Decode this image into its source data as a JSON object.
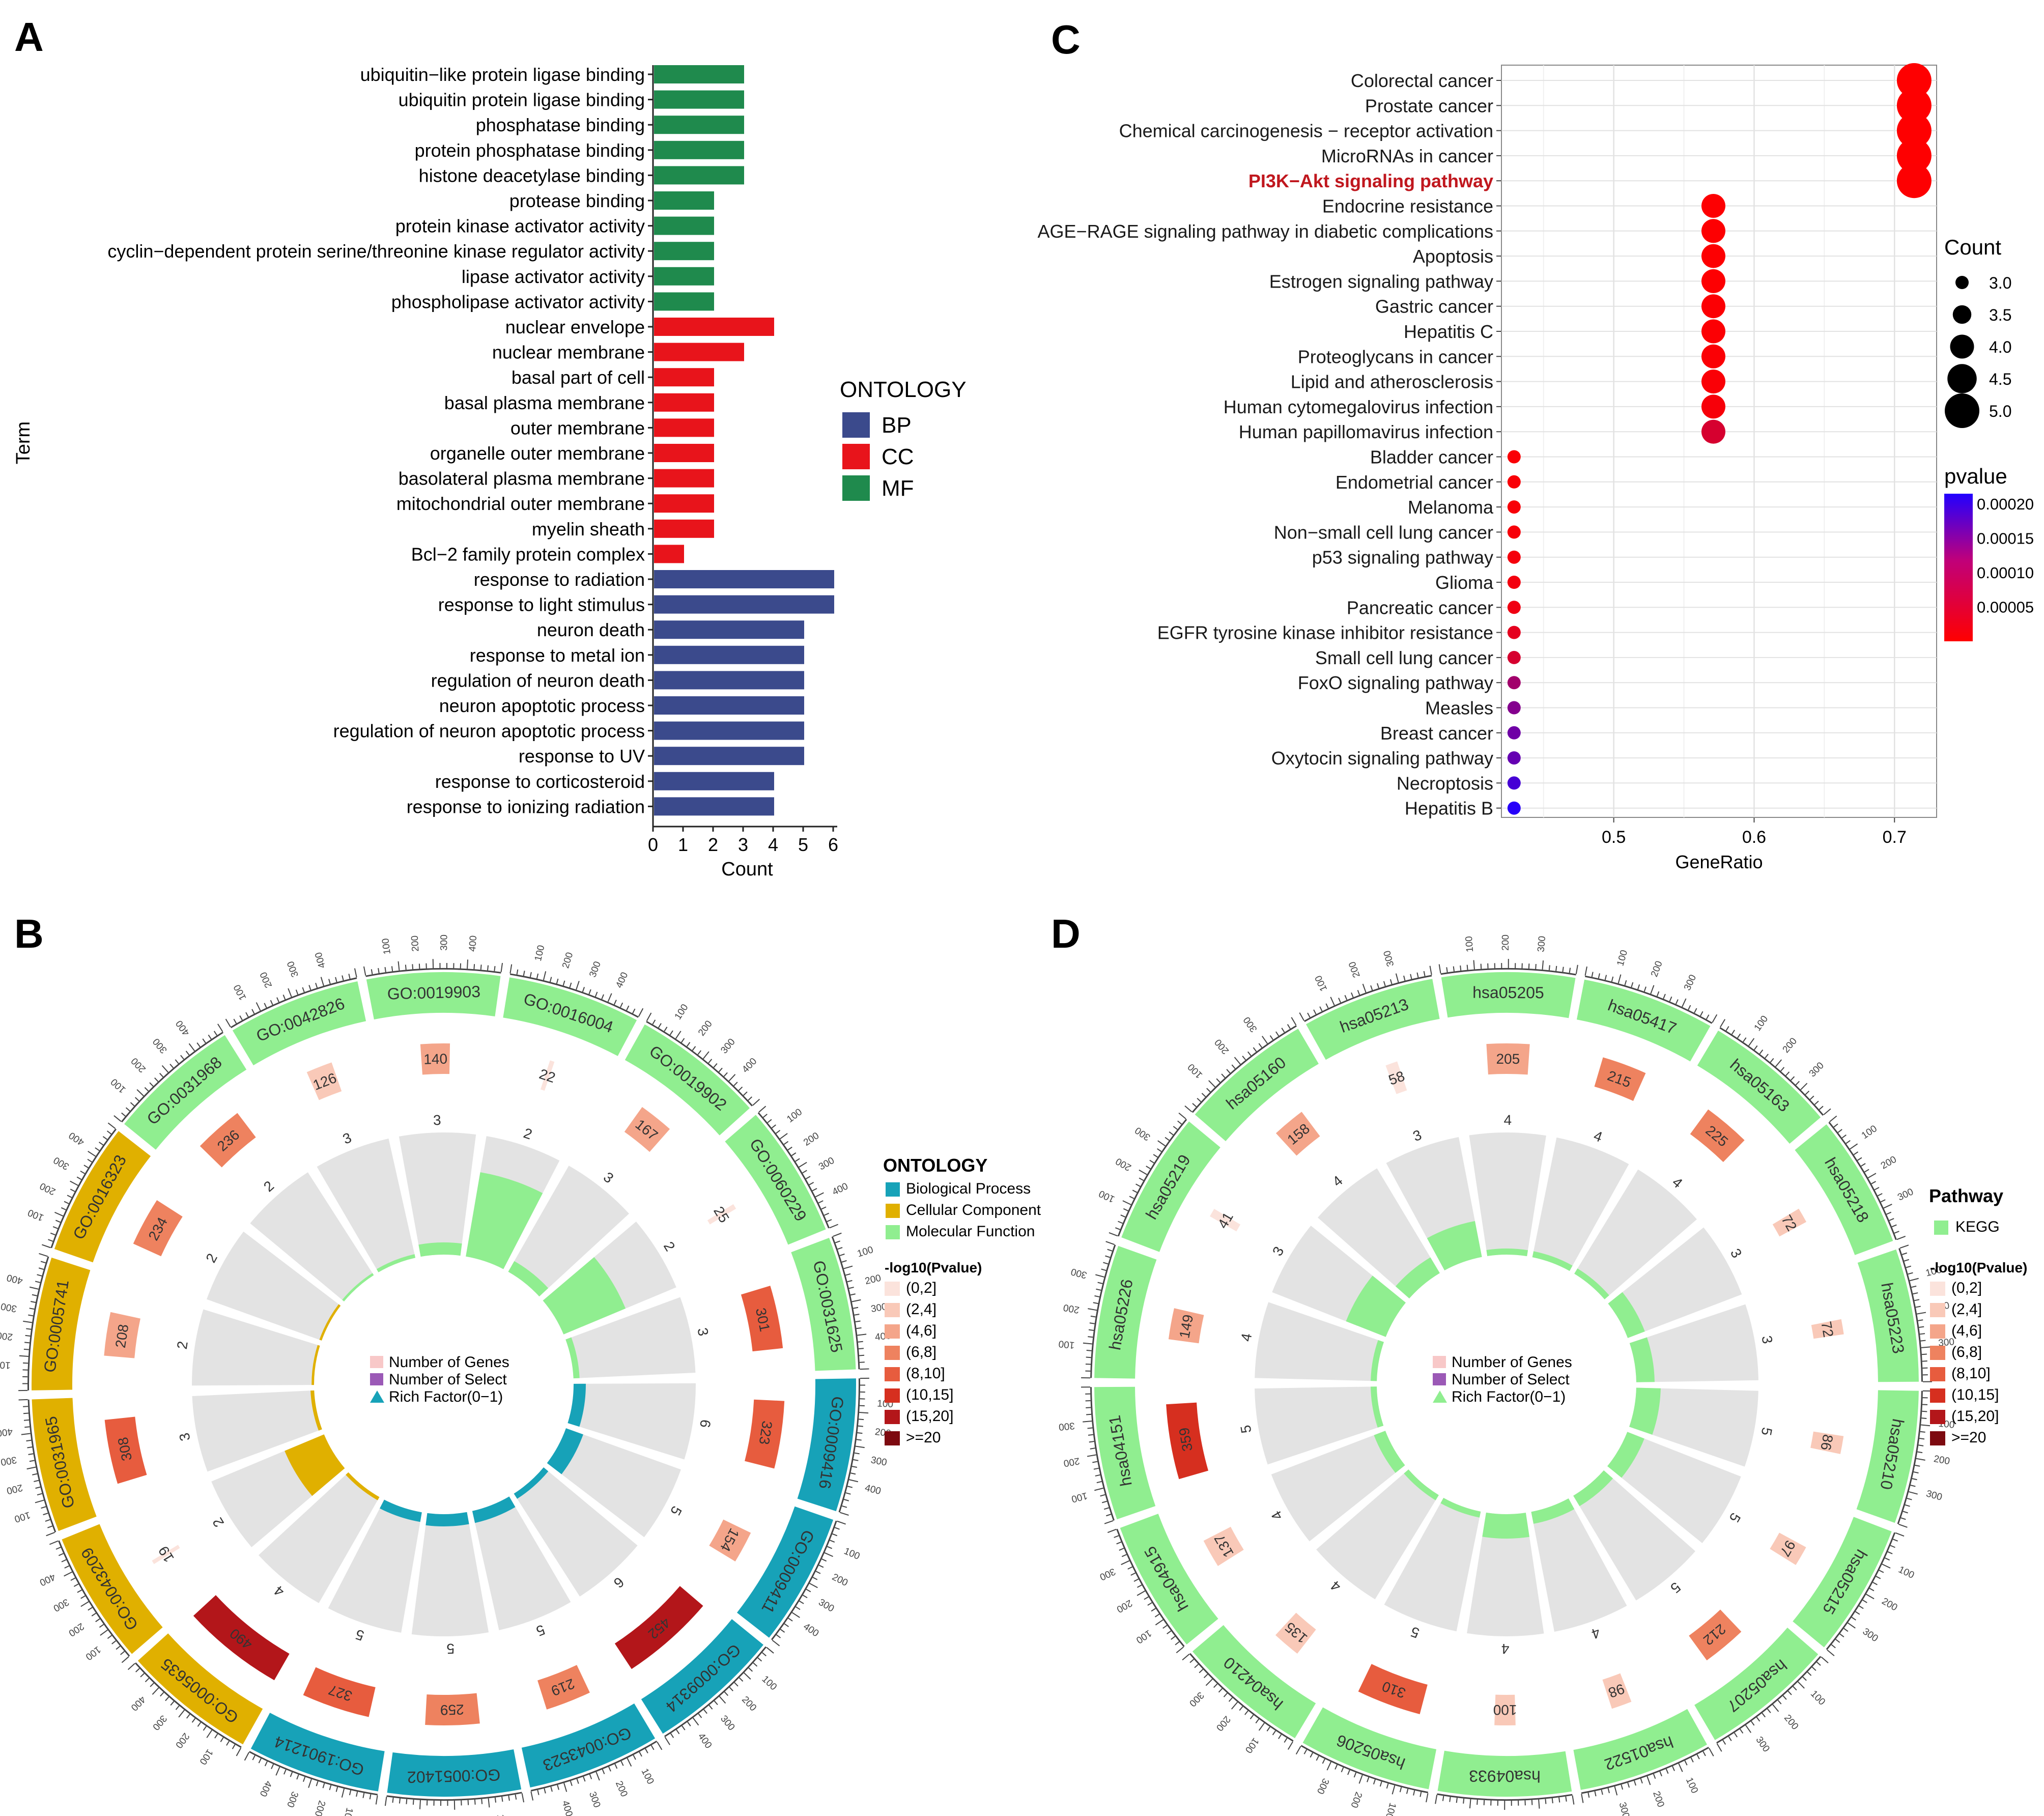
{
  "panels": [
    {
      "label": "A"
    },
    {
      "label": "C"
    },
    {
      "label": "B"
    },
    {
      "label": "D"
    }
  ],
  "chart_data": [
    {
      "type": "bar",
      "panel": "A",
      "orientation": "horizontal",
      "xlabel": "Count",
      "ylabel": "Term",
      "xlim": [
        0,
        6
      ],
      "xticks": [
        "0",
        "1",
        "2",
        "3",
        "4",
        "5",
        "6"
      ],
      "legend": {
        "title": "ONTOLOGY",
        "placement": "right",
        "items": [
          {
            "name": "BP",
            "color": "#3b4a8c"
          },
          {
            "name": "CC",
            "color": "#e8141b"
          },
          {
            "name": "MF",
            "color": "#1f8a4d"
          }
        ]
      },
      "categories": [
        "ubiquitin−like protein ligase binding",
        "ubiquitin protein ligase binding",
        "phosphatase binding",
        "protein phosphatase binding",
        "histone deacetylase binding",
        "protease binding",
        "protein kinase activator activity",
        "cyclin−dependent protein serine/threonine kinase regulator activity",
        "lipase activator activity",
        "phospholipase activator activity",
        "nuclear envelope",
        "nuclear membrane",
        "basal part of cell",
        "basal plasma membrane",
        "outer membrane",
        "organelle outer membrane",
        "basolateral plasma membrane",
        "mitochondrial outer membrane",
        "myelin sheath",
        "Bcl−2 family protein complex",
        "response to radiation",
        "response to light stimulus",
        "neuron death",
        "response to metal ion",
        "regulation of neuron death",
        "neuron apoptotic process",
        "regulation of neuron apoptotic process",
        "response to UV",
        "response to corticosteroid",
        "response to ionizing radiation"
      ],
      "values": [
        3,
        3,
        3,
        3,
        3,
        2,
        2,
        2,
        2,
        2,
        4,
        3,
        2,
        2,
        2,
        2,
        2,
        2,
        2,
        1,
        6,
        6,
        5,
        5,
        5,
        5,
        5,
        5,
        4,
        4
      ],
      "groups": [
        "MF",
        "MF",
        "MF",
        "MF",
        "MF",
        "MF",
        "MF",
        "MF",
        "MF",
        "MF",
        "CC",
        "CC",
        "CC",
        "CC",
        "CC",
        "CC",
        "CC",
        "CC",
        "CC",
        "CC",
        "BP",
        "BP",
        "BP",
        "BP",
        "BP",
        "BP",
        "BP",
        "BP",
        "BP",
        "BP"
      ]
    },
    {
      "type": "scatter",
      "panel": "C",
      "xlabel": "GeneRatio",
      "xlim": [
        0.42,
        0.73
      ],
      "xticks": [
        0.5,
        0.6,
        0.7
      ],
      "xtick_labels": [
        "0.5",
        "0.6",
        "0.7"
      ],
      "categories": [
        "Colorectal cancer",
        "Prostate cancer",
        "Chemical carcinogenesis − receptor activation",
        "MicroRNAs in cancer",
        "PI3K−Akt signaling pathway",
        "Endocrine resistance",
        "AGE−RAGE signaling pathway in diabetic complications",
        "Apoptosis",
        "Estrogen signaling pathway",
        "Gastric cancer",
        "Hepatitis C",
        "Proteoglycans in cancer",
        "Lipid and atherosclerosis",
        "Human cytomegalovirus infection",
        "Human papillomavirus infection",
        "Bladder cancer",
        "Endometrial cancer",
        "Melanoma",
        "Non−small cell lung cancer",
        "p53 signaling pathway",
        "Glioma",
        "Pancreatic cancer",
        "EGFR tyrosine kinase inhibitor resistance",
        "Small cell lung cancer",
        "FoxO signaling pathway",
        "Measles",
        "Breast cancer",
        "Oxytocin signaling pathway",
        "Necroptosis",
        "Hepatitis B"
      ],
      "highlight": "PI3K−Akt signaling pathway",
      "highlight_color": "#c0171e",
      "x": [
        0.714,
        0.714,
        0.714,
        0.714,
        0.714,
        0.571,
        0.571,
        0.571,
        0.571,
        0.571,
        0.571,
        0.571,
        0.571,
        0.571,
        0.571,
        0.429,
        0.429,
        0.429,
        0.429,
        0.429,
        0.429,
        0.429,
        0.429,
        0.429,
        0.429,
        0.429,
        0.429,
        0.429,
        0.429,
        0.429
      ],
      "count": [
        5,
        5,
        5,
        5,
        5,
        4,
        4,
        4,
        4,
        4,
        4,
        4,
        4,
        4,
        4,
        3,
        3,
        3,
        3,
        3,
        3,
        3,
        3,
        3,
        3,
        3,
        3,
        3,
        3,
        3
      ],
      "pvalue": [
        1e-06,
        1e-06,
        1e-06,
        1e-06,
        2e-06,
        2e-06,
        2e-06,
        2e-06,
        2e-06,
        3e-06,
        3e-06,
        4e-06,
        5e-06,
        8e-06,
        4e-05,
        5e-06,
        6e-06,
        7e-06,
        8e-06,
        1e-05,
        1.2e-05,
        1.5e-05,
        2.5e-05,
        4e-05,
        9e-05,
        0.00012,
        0.00014,
        0.00015,
        0.00018,
        0.00021
      ],
      "size_legend": {
        "title": "Count",
        "items": [
          "3.0",
          "3.5",
          "4.0",
          "4.5",
          "5.0"
        ],
        "values": [
          3,
          3.5,
          4,
          4.5,
          5
        ]
      },
      "color_legend": {
        "title": "pvalue",
        "ticks": [
          "0.00020",
          "0.00015",
          "0.00010",
          "0.00005"
        ],
        "tick_values": [
          0.0002,
          0.00015,
          0.0001,
          5e-05
        ],
        "range": [
          0,
          0.000215
        ],
        "low_color": "#ff0000",
        "high_color": "#2200ff"
      },
      "grid": true
    },
    {
      "type": "circos",
      "panel": "B",
      "sectors": [
        {
          "id": "GO:0019903",
          "cat": "MF",
          "genes": "140",
          "select": "3",
          "rf": 0.1
        },
        {
          "id": "GO:0016004",
          "cat": "MF",
          "genes": "22",
          "select": "2",
          "rf": 0.7
        },
        {
          "id": "GO:0019902",
          "cat": "MF",
          "genes": "167",
          "select": "3",
          "rf": 0.1
        },
        {
          "id": "GO:0060229",
          "cat": "MF",
          "genes": "25",
          "select": "2",
          "rf": 0.55
        },
        {
          "id": "GO:0031625",
          "cat": "MF",
          "genes": "301",
          "select": "3",
          "rf": 0.05
        },
        {
          "id": "GO:0009416",
          "cat": "BP",
          "genes": "323",
          "select": "6",
          "rf": 0.1
        },
        {
          "id": "GO:0009411",
          "cat": "BP",
          "genes": "154",
          "select": "5",
          "rf": 0.15
        },
        {
          "id": "GO:0009314",
          "cat": "BP",
          "genes": "452",
          "select": "6",
          "rf": 0.05
        },
        {
          "id": "GO:0043523",
          "cat": "BP",
          "genes": "219",
          "select": "5",
          "rf": 0.1
        },
        {
          "id": "GO:0051402",
          "cat": "BP",
          "genes": "259",
          "select": "5",
          "rf": 0.1
        },
        {
          "id": "GO:1901214",
          "cat": "BP",
          "genes": "327",
          "select": "5",
          "rf": 0.08
        },
        {
          "id": "GO:0005635",
          "cat": "CC",
          "genes": "490",
          "select": "4",
          "rf": 0.03
        },
        {
          "id": "GO:0043209",
          "cat": "CC",
          "genes": "19",
          "select": "2",
          "rf": 0.35
        },
        {
          "id": "GO:0031965",
          "cat": "CC",
          "genes": "308",
          "select": "3",
          "rf": 0.03
        },
        {
          "id": "GO:0005741",
          "cat": "CC",
          "genes": "208",
          "select": "2",
          "rf": 0.02
        },
        {
          "id": "GO:0016323",
          "cat": "CC",
          "genes": "234",
          "select": "2",
          "rf": 0.02
        },
        {
          "id": "GO:0031968",
          "cat": "MF",
          "genes": "236",
          "select": "2",
          "rf": 0.02
        },
        {
          "id": "GO:0042826",
          "cat": "MF",
          "genes": "126",
          "select": "3",
          "rf": 0.03
        }
      ],
      "sector_colors": {
        "BP": "#17a2b8",
        "CC": "#e0b000",
        "MF": "#90ee90"
      },
      "legend_ontology": {
        "title": "ONTOLOGY",
        "items": [
          {
            "name": "Biological Process",
            "color": "#17a2b8"
          },
          {
            "name": "Cellular Component",
            "color": "#e0b000"
          },
          {
            "name": "Molecular Function",
            "color": "#90ee90"
          }
        ]
      },
      "legend_p": {
        "title": "-log10(Pvalue)",
        "items": [
          "(0,2]",
          "(2,4]",
          "(4,6]",
          "(6,8]",
          "(8,10]",
          "(10,15]",
          "(15,20]",
          ">=20"
        ],
        "colors": [
          "#fbe3dc",
          "#f9c9b8",
          "#f4a58a",
          "#ee825f",
          "#e75c3e",
          "#d62f1f",
          "#b3161a",
          "#7d0a10"
        ]
      },
      "center_legend": [
        {
          "name": "Number of Genes",
          "color": "#f8c8c8"
        },
        {
          "name": "Number of Select",
          "color": "#9b59b6"
        },
        {
          "name": "Rich Factor(0−1)",
          "color": "#17a2b8",
          "shape": "triangle"
        }
      ],
      "ticks": [
        "100",
        "200",
        "300",
        "400"
      ]
    },
    {
      "type": "circos",
      "panel": "D",
      "sectors": [
        {
          "id": "hsa05205",
          "genes": "205",
          "select": "4",
          "rf": 0.05
        },
        {
          "id": "hsa05417",
          "genes": "215",
          "select": "4",
          "rf": 0.05
        },
        {
          "id": "hsa05163",
          "genes": "225",
          "select": "4",
          "rf": 0.05
        },
        {
          "id": "hsa05218",
          "genes": "72",
          "select": "3",
          "rf": 0.15
        },
        {
          "id": "hsa05223",
          "genes": "72",
          "select": "3",
          "rf": 0.15
        },
        {
          "id": "hsa05210",
          "genes": "86",
          "select": "5",
          "rf": 0.2
        },
        {
          "id": "hsa05215",
          "genes": "97",
          "select": "5",
          "rf": 0.15
        },
        {
          "id": "hsa05207",
          "genes": "212",
          "select": "5",
          "rf": 0.1
        },
        {
          "id": "hsa01522",
          "genes": "98",
          "select": "4",
          "rf": 0.1
        },
        {
          "id": "hsa04933",
          "genes": "100",
          "select": "4",
          "rf": 0.2
        },
        {
          "id": "hsa05206",
          "genes": "310",
          "select": "5",
          "rf": 0.05
        },
        {
          "id": "hsa04210",
          "genes": "135",
          "select": "4",
          "rf": 0.05
        },
        {
          "id": "hsa04915",
          "genes": "137",
          "select": "4",
          "rf": 0.1
        },
        {
          "id": "hsa04151",
          "genes": "359",
          "select": "5",
          "rf": 0.05
        },
        {
          "id": "hsa05226",
          "genes": "149",
          "select": "4",
          "rf": 0.05
        },
        {
          "id": "hsa05219",
          "genes": "41",
          "select": "3",
          "rf": 0.35
        },
        {
          "id": "hsa05160",
          "genes": "158",
          "select": "4",
          "rf": 0.15
        },
        {
          "id": "hsa05213",
          "genes": "58",
          "select": "3",
          "rf": 0.3
        }
      ],
      "sector_color": "#90ee90",
      "legend_pathway": {
        "title": "Pathway",
        "items": [
          {
            "name": "KEGG",
            "color": "#90ee90"
          }
        ]
      },
      "legend_p": {
        "title": "-log10(Pvalue)",
        "items": [
          "(0,2]",
          "(2,4]",
          "(4,6]",
          "(6,8]",
          "(8,10]",
          "(10,15]",
          "(15,20]",
          ">=20"
        ],
        "colors": [
          "#fbe3dc",
          "#f9c9b8",
          "#f4a58a",
          "#ee825f",
          "#e75c3e",
          "#d62f1f",
          "#b3161a",
          "#7d0a10"
        ]
      },
      "center_legend": [
        {
          "name": "Number of Genes",
          "color": "#f8c8c8"
        },
        {
          "name": "Number of Select",
          "color": "#9b59b6"
        },
        {
          "name": "Rich Factor(0−1)",
          "color": "#90ee90",
          "shape": "triangle"
        }
      ],
      "ticks": [
        "100",
        "200",
        "300"
      ]
    }
  ]
}
